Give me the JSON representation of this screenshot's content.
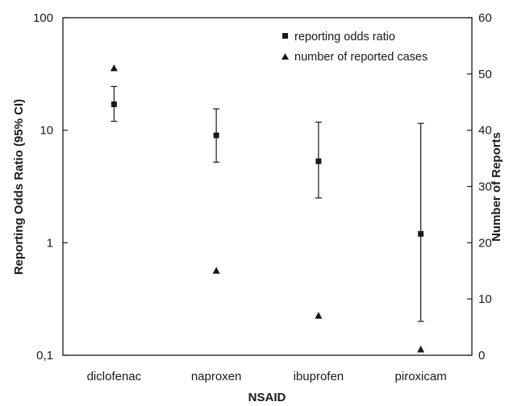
{
  "chart_data": {
    "type": "scatter",
    "categories": [
      "diclofenac",
      "naproxen",
      "ibuprofen",
      "piroxicam"
    ],
    "xlabel": "NSAID",
    "ylabel": "Reporting Odds Ratio (95% CI)",
    "ylabel_right": "Number of Reports",
    "yscale": "log",
    "ylim": [
      0.1,
      100
    ],
    "y_ticks": [
      0.1,
      1,
      10,
      100
    ],
    "y_tick_labels": [
      "0,1",
      "1",
      "10",
      "100"
    ],
    "ylim_right": [
      0,
      60
    ],
    "y_right_ticks": [
      0,
      10,
      20,
      30,
      40,
      50,
      60
    ],
    "y_right_tick_labels": [
      "0",
      "10",
      "20",
      "30",
      "40",
      "50",
      "60"
    ],
    "grid": false,
    "legend_position": "top-right",
    "series": [
      {
        "name": "reporting odds ratio",
        "marker": "square",
        "axis": "left",
        "values": [
          17.0,
          9.0,
          5.3,
          1.2
        ],
        "ci_low": [
          12.0,
          5.2,
          2.5,
          0.2
        ],
        "ci_high": [
          24.5,
          15.5,
          11.8,
          11.5
        ]
      },
      {
        "name": "number of reported cases",
        "marker": "triangle",
        "axis": "right",
        "values": [
          51,
          15,
          7,
          1
        ]
      }
    ]
  },
  "colors": {
    "ink": "#1a1a1a",
    "background": "#ffffff"
  }
}
